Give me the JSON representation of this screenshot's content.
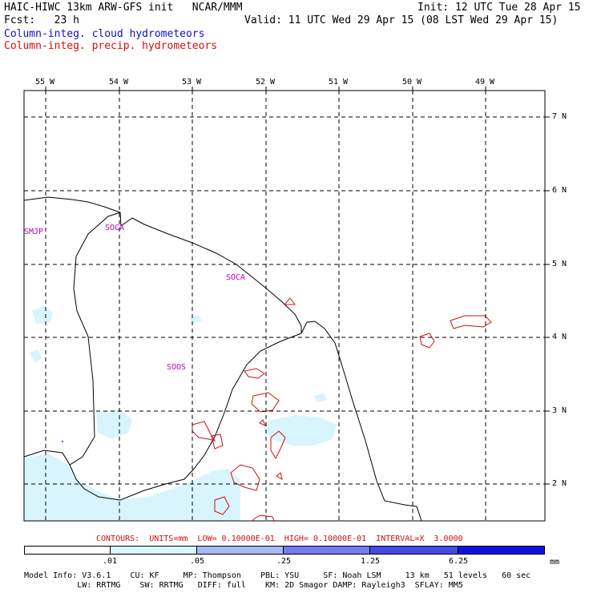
{
  "header": {
    "line1_left": "HAIC-HIWC 13km ARW-GFS init   NCAR/MMM",
    "line1_right": "Init: 12 UTC Tue 28 Apr 15",
    "line2_left": "Fcst:   23 h",
    "line2_right": "Valid: 11 UTC Wed 29 Apr 15 (08 LST Wed 29 Apr 15)",
    "field1": "Column-integ. cloud hydrometeors",
    "field2": "Column-integ. precip. hydrometeors"
  },
  "map": {
    "lon_labels": [
      "55 W",
      "54 W",
      "53 W",
      "52 W",
      "51 W",
      "50 W",
      "49 W"
    ],
    "lat_labels": [
      "7 N",
      "6 N",
      "5 N",
      "4 N",
      "3 N",
      "2 N"
    ],
    "stations": [
      "SMJP",
      "SOCA",
      "SOCA",
      "SOOS"
    ],
    "colors": {
      "cloud_fill": "#d8f4fc",
      "precip_contour": "#d01010",
      "station": "#c000c0",
      "grid": "#000000"
    }
  },
  "contours_line": "CONTOURS:  UNITS=mm  LOW= 0.10000E-01  HIGH= 0.10000E-01  INTERVAL=X  3.0000",
  "colorbar": {
    "levels": [
      ".01",
      ".05",
      ".25",
      "1.25",
      "6.25"
    ],
    "unit": "mm",
    "colors": [
      "#ffffff",
      "#d8f4fc",
      "#a8b8f8",
      "#7878f0",
      "#4848e8",
      "#1010e0"
    ]
  },
  "footer": {
    "line1": "Model Info: V3.6.1    CU: KF     MP: Thompson    PBL: YSU     SF: Noah LSM     13 km   51 levels   60 sec",
    "line2": "           LW: RRTMG    SW: RRTMG   DIFF: full    KM: 2D Smagor DAMP: Rayleigh3  SFLAY: MM5"
  }
}
